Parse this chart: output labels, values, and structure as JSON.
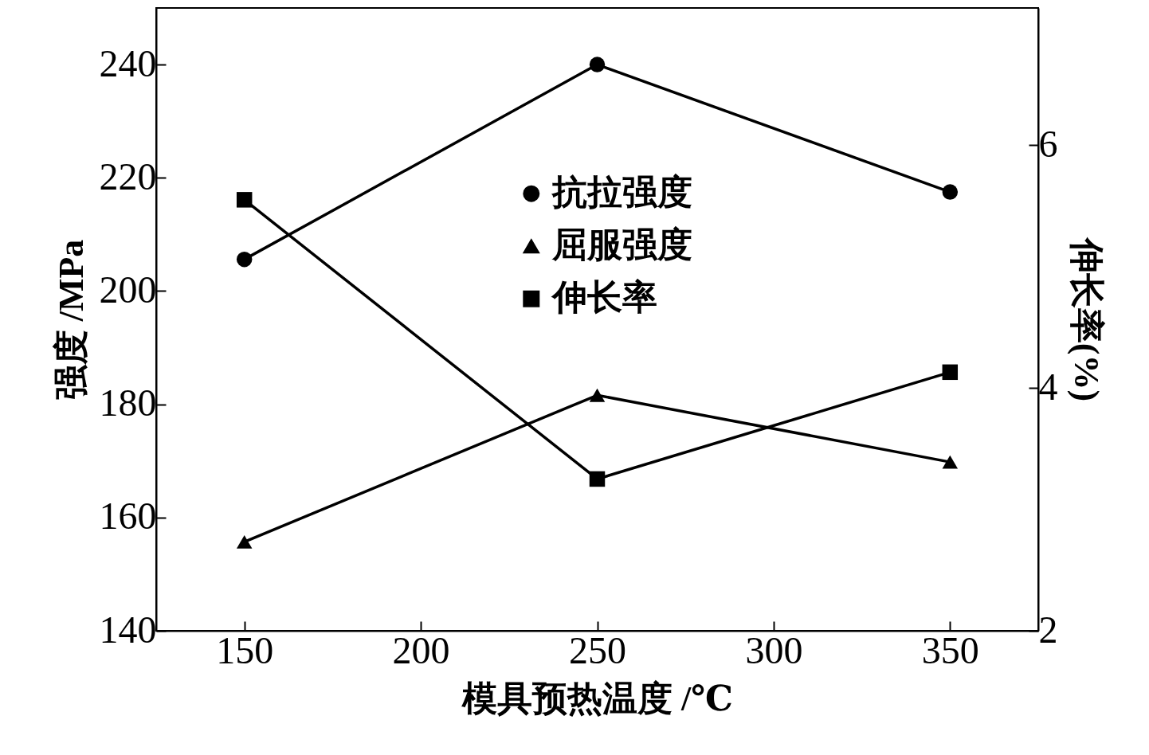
{
  "chart_data": {
    "type": "line",
    "xlabel": "模具预热温度 /℃",
    "ylabel": "强度 /MPa",
    "y2label": "伸长率(%)",
    "x": [
      150,
      250,
      350
    ],
    "series": [
      {
        "name": "抗拉强度",
        "color": "#000000",
        "marker": "circle",
        "values": [
          205.6,
          240,
          217.5
        ]
      },
      {
        "name": "屈服强度",
        "color": "#000000",
        "marker": "triangle",
        "values": [
          155.7,
          181.6,
          169.8
        ]
      },
      {
        "name": "伸长率",
        "color": "#000000",
        "marker": "square",
        "axis": "y2",
        "values": [
          5.55,
          3.25,
          4.13
        ]
      }
    ],
    "xlim": [
      125,
      375
    ],
    "xticks": [
      150,
      200,
      250,
      300,
      350
    ],
    "ylim": [
      140,
      250
    ],
    "yticks": [
      140,
      160,
      180,
      200,
      220,
      240
    ],
    "y2lim": [
      2,
      7.13
    ],
    "y2ticks": [
      2,
      4,
      6
    ],
    "grid": false,
    "legend": "top",
    "line_style": "solid"
  }
}
